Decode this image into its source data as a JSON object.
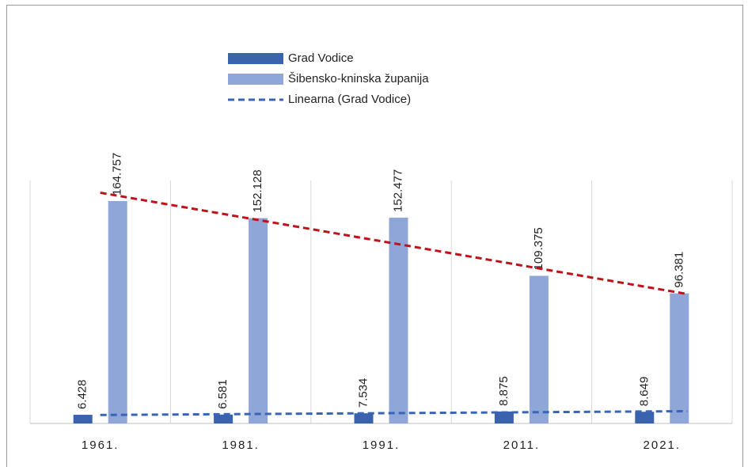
{
  "chart_data": {
    "type": "bar",
    "categories": [
      "1961.",
      "1981.",
      "1991.",
      "2011.",
      "2021."
    ],
    "series": [
      {
        "name": "Grad Vodice",
        "color": "#3a63ae",
        "values": [
          6428,
          6581,
          7534,
          8875,
          8649
        ],
        "value_labels": [
          "6.428",
          "6.581",
          "7.534",
          "8.875",
          "8.649"
        ]
      },
      {
        "name": "Šibensko-kninska županija",
        "color": "#8fa6d8",
        "values": [
          164757,
          152128,
          152477,
          109375,
          96381
        ],
        "value_labels": [
          "164.757",
          "152.128",
          "152.477",
          "109.375",
          "96.381"
        ]
      }
    ],
    "trendlines": [
      {
        "name": "Linearna (Grad Vodice)",
        "series": 0,
        "color": "#3a65b5"
      },
      {
        "series": 1,
        "color": "#c0121a"
      }
    ],
    "ylim": [
      0,
      180000
    ],
    "grid": true
  }
}
